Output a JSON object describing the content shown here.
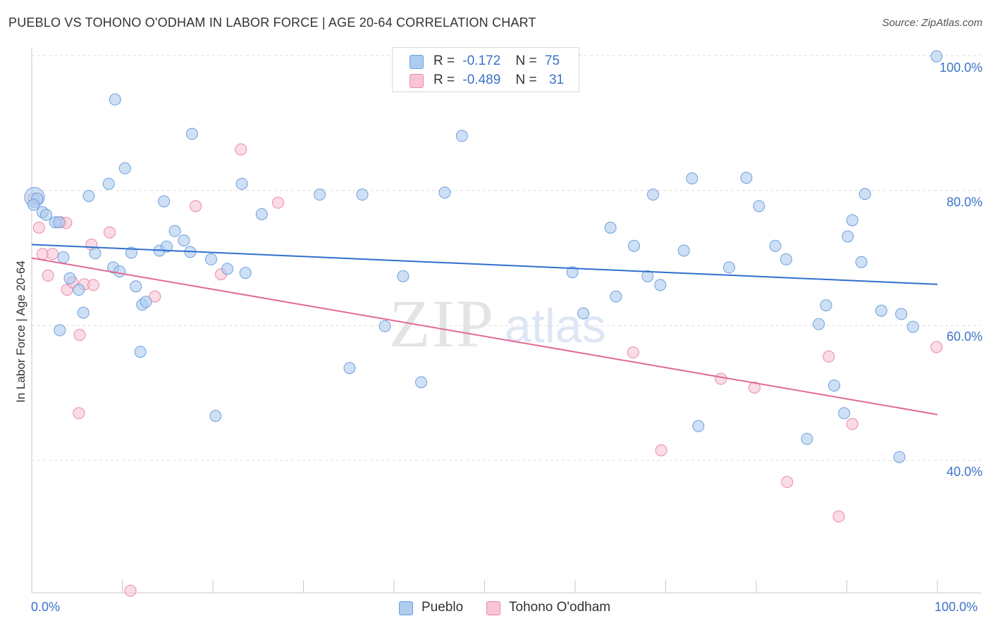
{
  "title": "PUEBLO VS TOHONO O'ODHAM IN LABOR FORCE | AGE 20-64 CORRELATION CHART",
  "source": "Source: ZipAtlas.com",
  "watermark": {
    "zip": "ZIP",
    "atlas": "atlas"
  },
  "colors": {
    "pueblo_fill": "#aecbf0",
    "pueblo_stroke": "#6f9fdc",
    "pueblo_line": "#2f6fcf",
    "tohono_fill": "#f9c4d3",
    "tohono_stroke": "#e98aa8",
    "tohono_line": "#e26a93",
    "axis_text": "#3b73c8",
    "grid": "#dddddd"
  },
  "legend": {
    "rows": [
      {
        "r_label": "R =",
        "r_value": "-0.172",
        "n_label": "N =",
        "n_value": "75"
      },
      {
        "r_label": "R =",
        "r_value": "-0.489",
        "n_label": "N =",
        "n_value": "31"
      }
    ]
  },
  "bottom_legend": [
    "Pueblo",
    "Tohono O'odham"
  ],
  "chart_data": {
    "type": "scatter",
    "title": "PUEBLO VS TOHONO O'ODHAM IN LABOR FORCE | AGE 20-64 CORRELATION CHART",
    "xlabel": "",
    "ylabel": "In Labor Force | Age 20-64",
    "x_tick_labels": [
      "0.0%",
      "100.0%"
    ],
    "y_tick_labels": [
      "40.0%",
      "60.0%",
      "80.0%",
      "100.0%"
    ],
    "xlim": [
      0,
      100
    ],
    "ylim": [
      20,
      100
    ],
    "grid": true,
    "legend_position": "top-center",
    "series": [
      {
        "name": "Pueblo",
        "r": -0.172,
        "n": 75,
        "trend": {
          "x": [
            0,
            100
          ],
          "y": [
            72.0,
            66.1
          ]
        },
        "points": [
          [
            0.3,
            79.0
          ],
          [
            1.2,
            76.8
          ],
          [
            1.6,
            76.4
          ],
          [
            2.6,
            75.3
          ],
          [
            3.0,
            75.3
          ],
          [
            3.5,
            70.1
          ],
          [
            4.2,
            67.0
          ],
          [
            5.2,
            65.3
          ],
          [
            5.7,
            61.9
          ],
          [
            6.3,
            79.2
          ],
          [
            7.0,
            70.7
          ],
          [
            8.5,
            81.0
          ],
          [
            9.0,
            68.6
          ],
          [
            9.2,
            93.5
          ],
          [
            9.7,
            68.0
          ],
          [
            10.3,
            83.3
          ],
          [
            11.0,
            70.8
          ],
          [
            11.5,
            65.8
          ],
          [
            12.2,
            63.1
          ],
          [
            12.0,
            56.1
          ],
          [
            14.1,
            71.1
          ],
          [
            14.6,
            78.4
          ],
          [
            14.9,
            71.7
          ],
          [
            15.8,
            74.0
          ],
          [
            16.8,
            72.6
          ],
          [
            17.5,
            70.9
          ],
          [
            17.7,
            88.4
          ],
          [
            19.8,
            69.8
          ],
          [
            20.3,
            46.6
          ],
          [
            21.6,
            68.4
          ],
          [
            23.2,
            81.0
          ],
          [
            23.6,
            67.8
          ],
          [
            25.4,
            76.5
          ],
          [
            31.8,
            79.4
          ],
          [
            35.1,
            53.7
          ],
          [
            36.5,
            79.4
          ],
          [
            39.0,
            59.9
          ],
          [
            41.0,
            67.3
          ],
          [
            43.0,
            51.6
          ],
          [
            45.6,
            79.7
          ],
          [
            47.5,
            88.1
          ],
          [
            59.7,
            67.9
          ],
          [
            60.9,
            61.8
          ],
          [
            63.9,
            74.5
          ],
          [
            64.5,
            64.3
          ],
          [
            66.5,
            71.8
          ],
          [
            68.0,
            67.3
          ],
          [
            68.6,
            79.4
          ],
          [
            69.4,
            66.0
          ],
          [
            72.0,
            71.1
          ],
          [
            72.9,
            81.8
          ],
          [
            73.6,
            45.1
          ],
          [
            77.0,
            68.6
          ],
          [
            78.9,
            81.9
          ],
          [
            80.3,
            77.7
          ],
          [
            82.1,
            71.8
          ],
          [
            83.3,
            69.8
          ],
          [
            85.6,
            43.2
          ],
          [
            86.9,
            60.2
          ],
          [
            87.7,
            63.0
          ],
          [
            88.6,
            51.1
          ],
          [
            89.7,
            47.0
          ],
          [
            90.1,
            73.2
          ],
          [
            90.6,
            75.6
          ],
          [
            91.6,
            69.4
          ],
          [
            92.0,
            79.5
          ],
          [
            93.8,
            62.2
          ],
          [
            95.8,
            40.5
          ],
          [
            96.0,
            61.7
          ],
          [
            97.3,
            59.8
          ],
          [
            99.9,
            99.9
          ],
          [
            0.6,
            78.8
          ],
          [
            3.1,
            59.3
          ],
          [
            12.6,
            63.5
          ],
          [
            0.2,
            77.9
          ]
        ]
      },
      {
        "name": "Tohono O'odham",
        "r": -0.489,
        "n": 31,
        "trend": {
          "x": [
            0,
            100
          ],
          "y": [
            70.0,
            46.8
          ]
        },
        "points": [
          [
            0.2,
            78.8
          ],
          [
            0.8,
            74.5
          ],
          [
            1.2,
            70.6
          ],
          [
            1.8,
            67.4
          ],
          [
            2.3,
            70.6
          ],
          [
            3.2,
            75.3
          ],
          [
            3.8,
            75.2
          ],
          [
            3.9,
            65.3
          ],
          [
            4.5,
            66.4
          ],
          [
            5.3,
            58.6
          ],
          [
            5.2,
            47.0
          ],
          [
            5.8,
            66.1
          ],
          [
            6.6,
            72.0
          ],
          [
            6.8,
            66.0
          ],
          [
            8.6,
            73.8
          ],
          [
            10.9,
            20.7
          ],
          [
            13.6,
            64.3
          ],
          [
            18.1,
            77.7
          ],
          [
            20.9,
            67.6
          ],
          [
            23.1,
            86.1
          ],
          [
            27.2,
            78.2
          ],
          [
            47.0,
            100.1
          ],
          [
            66.4,
            56.0
          ],
          [
            69.5,
            41.5
          ],
          [
            76.1,
            52.1
          ],
          [
            79.8,
            50.8
          ],
          [
            83.4,
            36.8
          ],
          [
            88.0,
            55.4
          ],
          [
            89.1,
            31.7
          ],
          [
            90.6,
            45.4
          ],
          [
            99.9,
            56.8
          ]
        ]
      }
    ]
  }
}
